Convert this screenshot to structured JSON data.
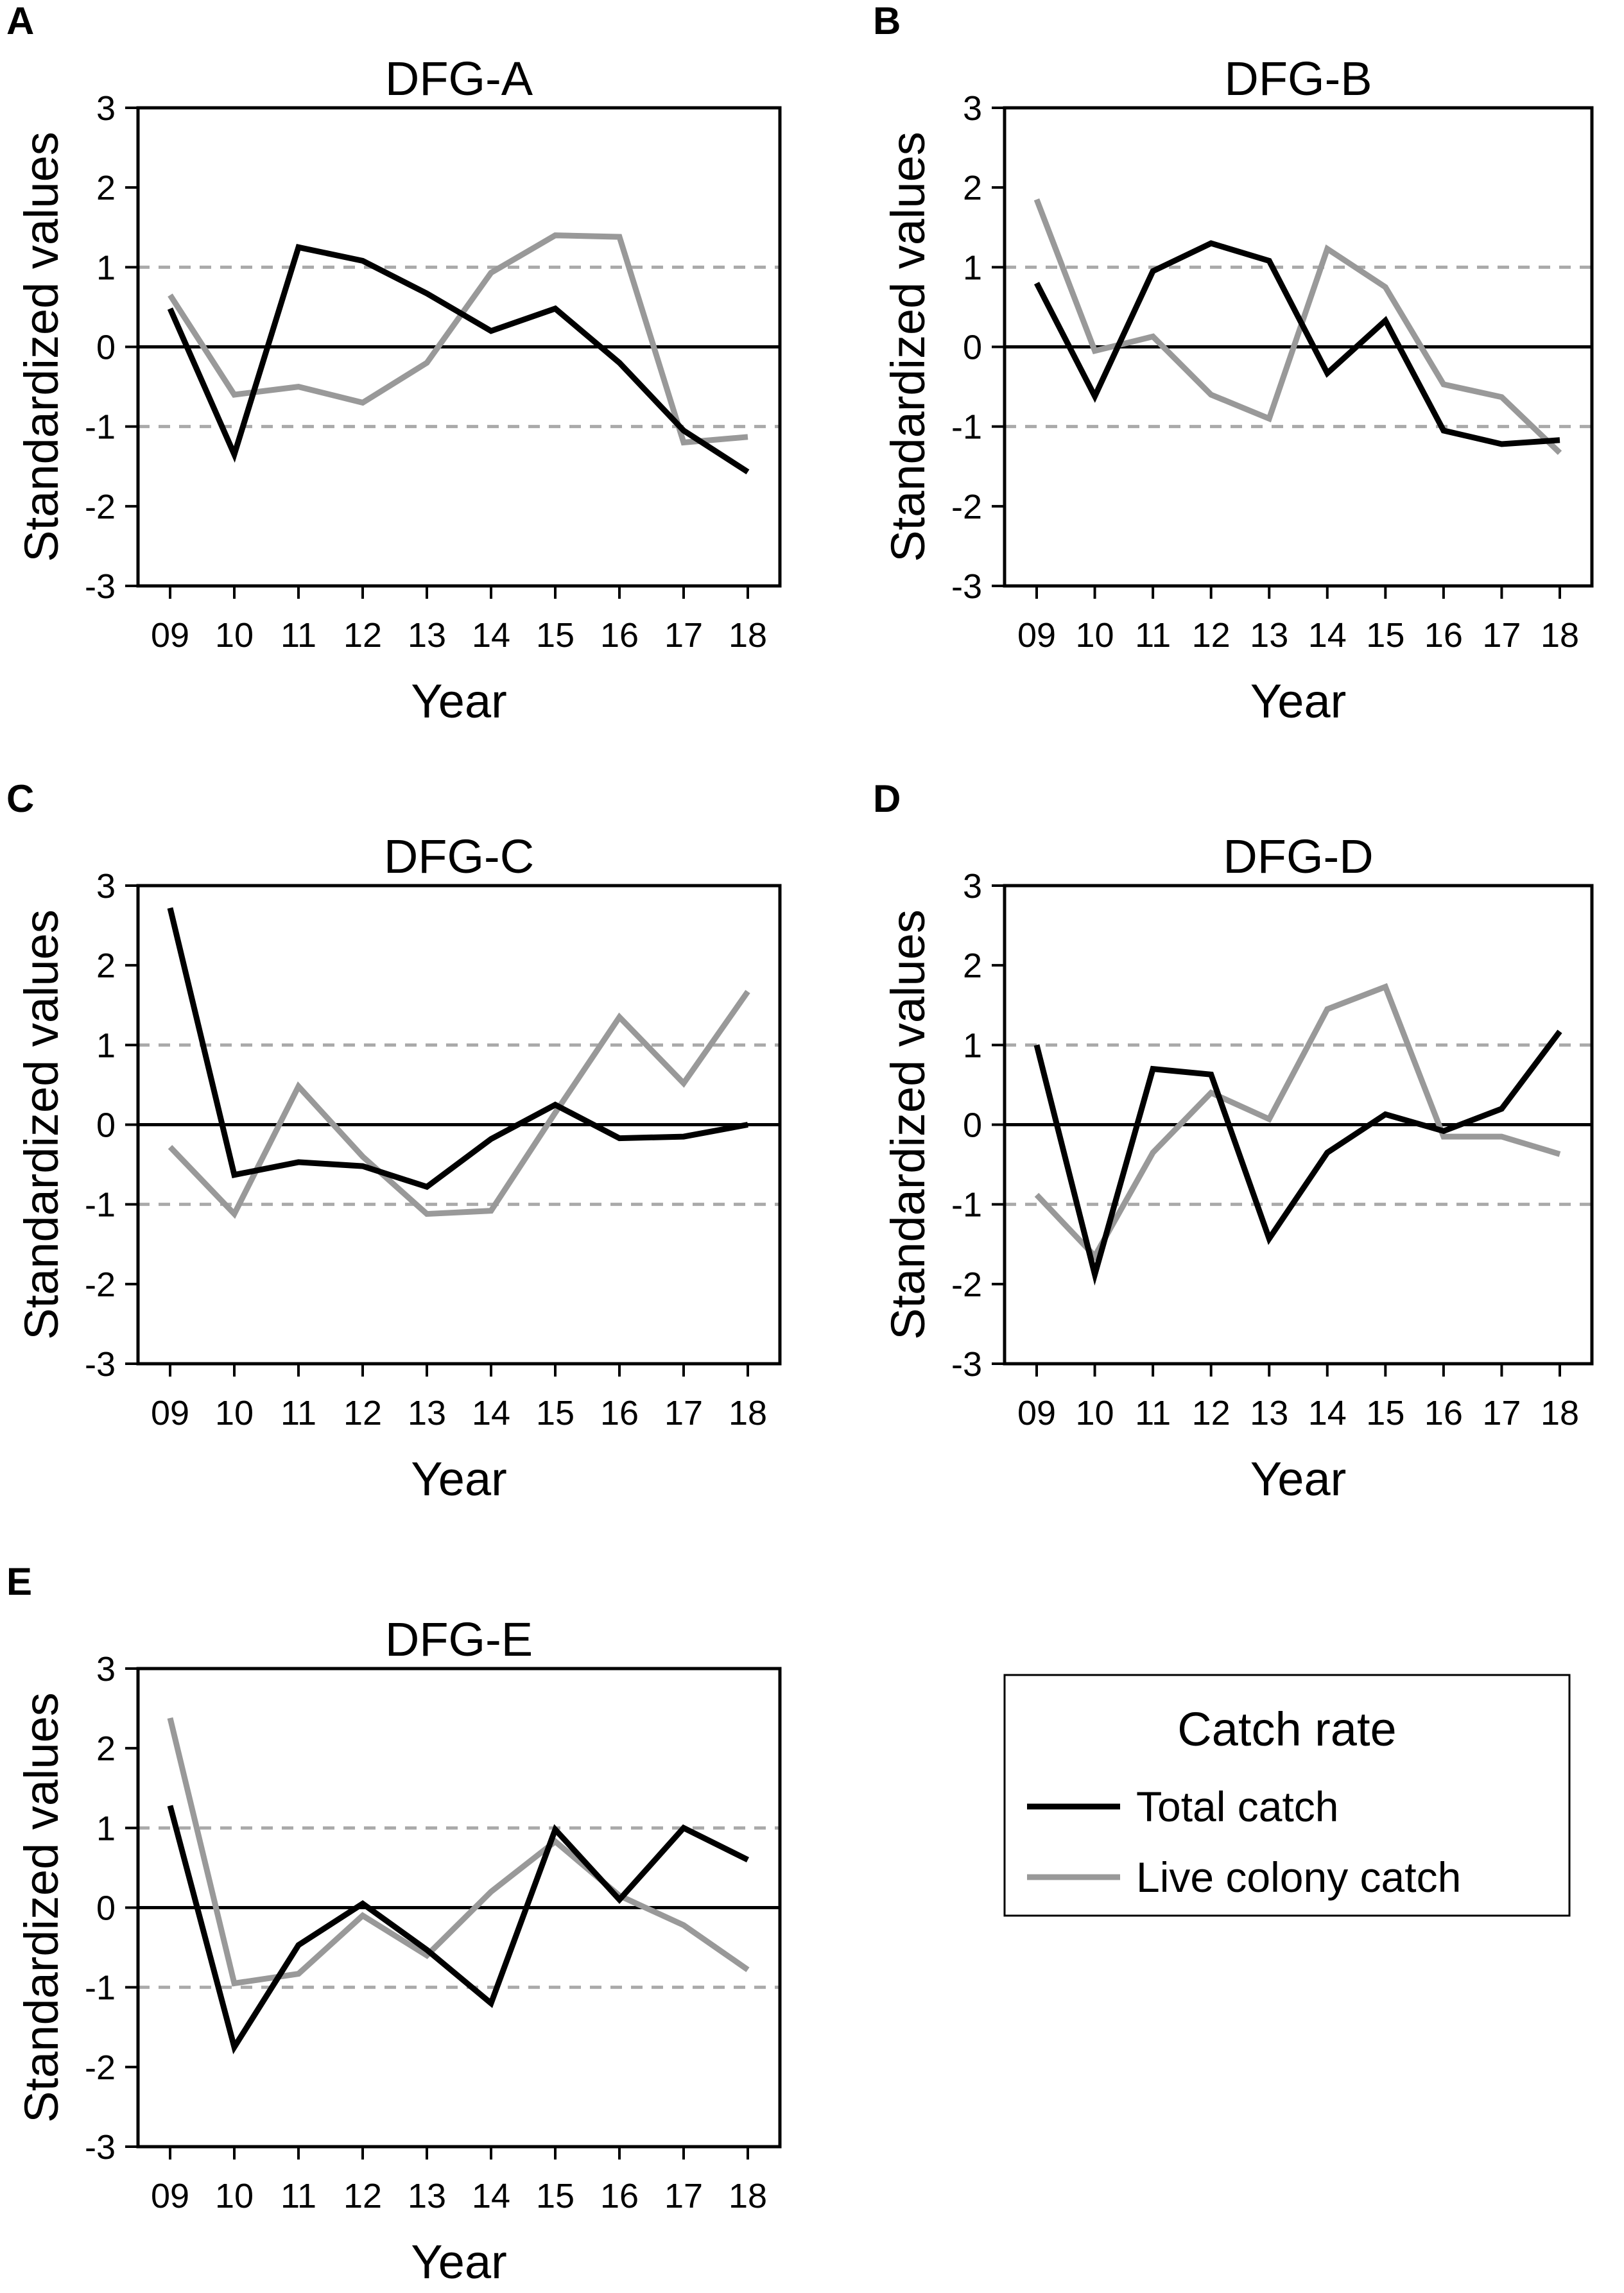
{
  "figure": {
    "legend": {
      "title": "Catch rate",
      "entries": [
        {
          "label": "Total catch",
          "color": "#000000"
        },
        {
          "label": "Live colony catch",
          "color": "#999999"
        }
      ]
    },
    "reference_lines": [
      1,
      -1
    ]
  },
  "chart_data": [
    {
      "type": "line",
      "panel": "A",
      "title": "DFG-A",
      "xlabel": "Year",
      "ylabel": "Standardized values",
      "categories": [
        "09",
        "10",
        "11",
        "12",
        "13",
        "14",
        "15",
        "16",
        "17",
        "18"
      ],
      "yticks": [
        "3",
        "2",
        "1",
        "0",
        "-1",
        "-2",
        "-3"
      ],
      "ylim": [
        -3,
        3
      ],
      "series": [
        {
          "name": "Total catch",
          "color": "#000000",
          "values": [
            0.48,
            -1.35,
            1.25,
            1.08,
            0.67,
            0.2,
            0.48,
            -0.2,
            -1.05,
            -1.57
          ]
        },
        {
          "name": "Live colony catch",
          "color": "#999999",
          "values": [
            0.65,
            -0.6,
            -0.5,
            -0.7,
            -0.2,
            0.93,
            1.4,
            1.38,
            -1.2,
            -1.13
          ]
        }
      ]
    },
    {
      "type": "line",
      "panel": "B",
      "title": "DFG-B",
      "xlabel": "Year",
      "ylabel": "Standardized values",
      "categories": [
        "09",
        "10",
        "11",
        "12",
        "13",
        "14",
        "15",
        "16",
        "17",
        "18"
      ],
      "yticks": [
        "3",
        "2",
        "1",
        "0",
        "-1",
        "-2",
        "-3"
      ],
      "ylim": [
        -3,
        3
      ],
      "series": [
        {
          "name": "Total catch",
          "color": "#000000",
          "values": [
            0.8,
            -0.62,
            0.95,
            1.3,
            1.08,
            -0.33,
            0.33,
            -1.05,
            -1.22,
            -1.17
          ]
        },
        {
          "name": "Live colony catch",
          "color": "#999999",
          "values": [
            1.85,
            -0.05,
            0.13,
            -0.6,
            -0.9,
            1.23,
            0.75,
            -0.47,
            -0.63,
            -1.33
          ]
        }
      ]
    },
    {
      "type": "line",
      "panel": "C",
      "title": "DFG-C",
      "xlabel": "Year",
      "ylabel": "Standardized values",
      "categories": [
        "09",
        "10",
        "11",
        "12",
        "13",
        "14",
        "15",
        "16",
        "17",
        "18"
      ],
      "yticks": [
        "3",
        "2",
        "1",
        "0",
        "-1",
        "-2",
        "-3"
      ],
      "ylim": [
        -3,
        3
      ],
      "series": [
        {
          "name": "Total catch",
          "color": "#000000",
          "values": [
            2.72,
            -0.63,
            -0.47,
            -0.52,
            -0.78,
            -0.18,
            0.25,
            -0.17,
            -0.15,
            0.0
          ]
        },
        {
          "name": "Live colony catch",
          "color": "#999999",
          "values": [
            -0.28,
            -1.12,
            0.48,
            -0.4,
            -1.12,
            -1.08,
            0.15,
            1.35,
            0.52,
            1.67
          ]
        }
      ]
    },
    {
      "type": "line",
      "panel": "D",
      "title": "DFG-D",
      "xlabel": "Year",
      "ylabel": "Standardized values",
      "categories": [
        "09",
        "10",
        "11",
        "12",
        "13",
        "14",
        "15",
        "16",
        "17",
        "18"
      ],
      "yticks": [
        "3",
        "2",
        "1",
        "0",
        "-1",
        "-2",
        "-3"
      ],
      "ylim": [
        -3,
        3
      ],
      "series": [
        {
          "name": "Total catch",
          "color": "#000000",
          "values": [
            1.0,
            -1.88,
            0.7,
            0.63,
            -1.43,
            -0.35,
            0.13,
            -0.08,
            0.2,
            1.17
          ]
        },
        {
          "name": "Live colony catch",
          "color": "#999999",
          "values": [
            -0.88,
            -1.65,
            -0.35,
            0.4,
            0.07,
            1.45,
            1.73,
            -0.15,
            -0.15,
            -0.37
          ]
        }
      ]
    },
    {
      "type": "line",
      "panel": "E",
      "title": "DFG-E",
      "xlabel": "Year",
      "ylabel": "Standardized values",
      "categories": [
        "09",
        "10",
        "11",
        "12",
        "13",
        "14",
        "15",
        "16",
        "17",
        "18"
      ],
      "yticks": [
        "3",
        "2",
        "1",
        "0",
        "-1",
        "-2",
        "-3"
      ],
      "ylim": [
        -3,
        3
      ],
      "series": [
        {
          "name": "Total catch",
          "color": "#000000",
          "values": [
            1.28,
            -1.75,
            -0.47,
            0.05,
            -0.53,
            -1.2,
            0.98,
            0.1,
            1.0,
            0.6
          ]
        },
        {
          "name": "Live colony catch",
          "color": "#999999",
          "values": [
            2.38,
            -0.95,
            -0.83,
            -0.1,
            -0.6,
            0.2,
            0.83,
            0.15,
            -0.22,
            -0.78
          ]
        }
      ]
    }
  ]
}
